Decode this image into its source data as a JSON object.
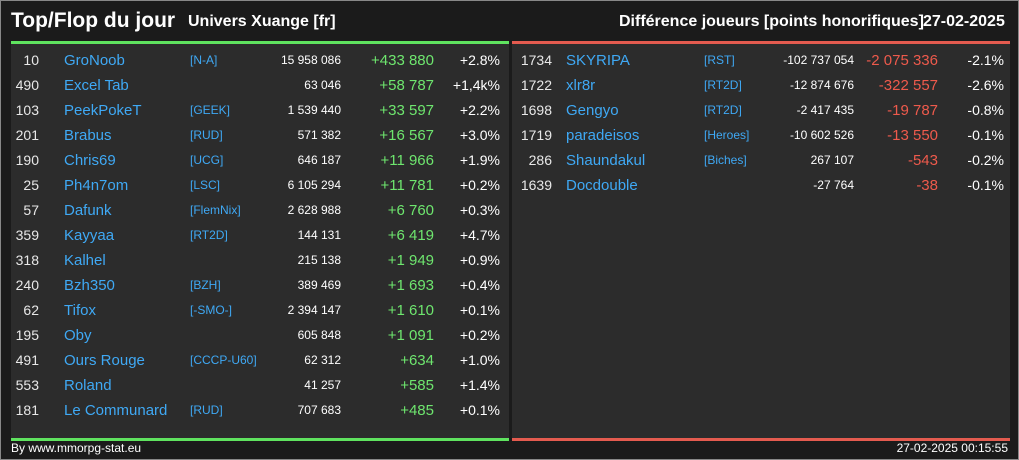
{
  "header": {
    "title": "Top/Flop du jour",
    "universe": "Univers Xuange [fr]",
    "metric": "Différence joueurs [points honorifiques]",
    "date": "27-02-2025"
  },
  "colors": {
    "top_accent": "#5fe35f",
    "flop_accent": "#e45b4f",
    "name": "#3fa9f5",
    "background": "#1b1b1b",
    "panel": "#2c2c2c"
  },
  "top": [
    {
      "rank": "10",
      "name": "GroNoob",
      "ally": "[N-A]",
      "points": "15 958 086",
      "diff": "+433 880",
      "pct": "+2.8%"
    },
    {
      "rank": "490",
      "name": "Excel Tab",
      "ally": "",
      "points": "63 046",
      "diff": "+58 787",
      "pct": "+1,4k%"
    },
    {
      "rank": "103",
      "name": "PeekPokeT",
      "ally": "[GEEK]",
      "points": "1 539 440",
      "diff": "+33 597",
      "pct": "+2.2%"
    },
    {
      "rank": "201",
      "name": "Brabus",
      "ally": "[RUD]",
      "points": "571 382",
      "diff": "+16 567",
      "pct": "+3.0%"
    },
    {
      "rank": "190",
      "name": "Chris69",
      "ally": "[UCG]",
      "points": "646 187",
      "diff": "+11 966",
      "pct": "+1.9%"
    },
    {
      "rank": "25",
      "name": "Ph4n7om",
      "ally": "[LSC]",
      "points": "6 105 294",
      "diff": "+11 781",
      "pct": "+0.2%"
    },
    {
      "rank": "57",
      "name": "Dafunk",
      "ally": "[FlemNix]",
      "points": "2 628 988",
      "diff": "+6 760",
      "pct": "+0.3%"
    },
    {
      "rank": "359",
      "name": "Kayyaa",
      "ally": "[RT2D]",
      "points": "144 131",
      "diff": "+6 419",
      "pct": "+4.7%"
    },
    {
      "rank": "318",
      "name": "Kalhel",
      "ally": "",
      "points": "215 138",
      "diff": "+1 949",
      "pct": "+0.9%"
    },
    {
      "rank": "240",
      "name": "Bzh350",
      "ally": "[BZH]",
      "points": "389 469",
      "diff": "+1 693",
      "pct": "+0.4%"
    },
    {
      "rank": "62",
      "name": "Tifox",
      "ally": "[-SMO-]",
      "points": "2 394 147",
      "diff": "+1 610",
      "pct": "+0.1%"
    },
    {
      "rank": "195",
      "name": "Oby",
      "ally": "",
      "points": "605 848",
      "diff": "+1 091",
      "pct": "+0.2%"
    },
    {
      "rank": "491",
      "name": "Ours Rouge",
      "ally": "[CCCP-U60]",
      "points": "62 312",
      "diff": "+634",
      "pct": "+1.0%"
    },
    {
      "rank": "553",
      "name": "Roland",
      "ally": "",
      "points": "41 257",
      "diff": "+585",
      "pct": "+1.4%"
    },
    {
      "rank": "181",
      "name": "Le Communard",
      "ally": "[RUD]",
      "points": "707 683",
      "diff": "+485",
      "pct": "+0.1%"
    }
  ],
  "flop": [
    {
      "rank": "1734",
      "name": "SKYRIPA",
      "ally": "[RST]",
      "points": "-102 737 054",
      "diff": "-2 075 336",
      "pct": "-2.1%"
    },
    {
      "rank": "1722",
      "name": "xlr8r",
      "ally": "[RT2D]",
      "points": "-12 874 676",
      "diff": "-322 557",
      "pct": "-2.6%"
    },
    {
      "rank": "1698",
      "name": "Gengyo",
      "ally": "[RT2D]",
      "points": "-2 417 435",
      "diff": "-19 787",
      "pct": "-0.8%"
    },
    {
      "rank": "1719",
      "name": "paradeisos",
      "ally": "[Heroes]",
      "points": "-10 602 526",
      "diff": "-13 550",
      "pct": "-0.1%"
    },
    {
      "rank": "286",
      "name": "Shaundakul",
      "ally": "[Biches]",
      "points": "267 107",
      "diff": "-543",
      "pct": "-0.2%"
    },
    {
      "rank": "1639",
      "name": "Docdouble",
      "ally": "",
      "points": "-27 764",
      "diff": "-38",
      "pct": "-0.1%"
    }
  ],
  "footer": {
    "credit": "By www.mmorpg-stat.eu",
    "timestamp": "27-02-2025 00:15:55"
  }
}
